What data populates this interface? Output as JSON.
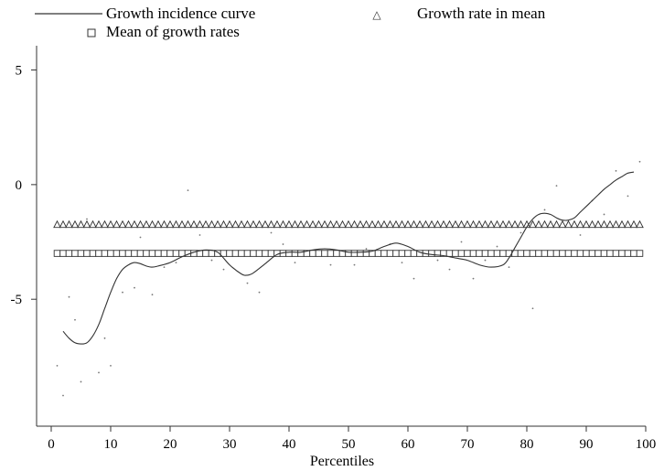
{
  "chart_data": {
    "type": "line",
    "title": "",
    "xlabel": "Percentiles",
    "ylabel": "",
    "xlim": [
      0,
      100
    ],
    "ylim": [
      -9.5,
      5.5
    ],
    "x_ticks": [
      0,
      10,
      20,
      30,
      40,
      50,
      60,
      70,
      80,
      90,
      100
    ],
    "x_tick_labels": [
      "0",
      "10",
      "20",
      "30",
      "40",
      "50",
      "60",
      "70",
      "80",
      "90",
      "100"
    ],
    "y_ticks": [
      5,
      0,
      -5
    ],
    "y_tick_labels": [
      "5",
      "0",
      "-5"
    ],
    "legend_position": "top",
    "series": [
      {
        "name": "Growth incidence curve",
        "style": "line",
        "color": "#333333",
        "x": [
          2,
          3,
          4,
          5,
          6,
          7,
          8,
          9,
          10,
          11,
          12,
          13,
          14,
          15,
          16,
          17,
          18,
          20,
          22,
          24,
          26,
          28,
          30,
          32,
          33,
          34,
          36,
          38,
          40,
          42,
          44,
          46,
          48,
          50,
          52,
          54,
          56,
          58,
          60,
          62,
          64,
          66,
          68,
          70,
          72,
          74,
          76,
          77,
          78,
          79,
          80,
          81,
          82,
          83,
          84,
          85,
          86,
          87,
          88,
          89,
          90,
          91,
          92,
          93,
          94,
          95,
          96,
          97,
          98
        ],
        "y": [
          -6.4,
          -6.7,
          -6.9,
          -6.95,
          -6.9,
          -6.6,
          -6.1,
          -5.4,
          -4.7,
          -4.1,
          -3.7,
          -3.5,
          -3.4,
          -3.45,
          -3.55,
          -3.6,
          -3.55,
          -3.4,
          -3.15,
          -2.95,
          -2.85,
          -2.95,
          -3.5,
          -3.9,
          -3.95,
          -3.85,
          -3.45,
          -3.05,
          -2.95,
          -2.95,
          -2.85,
          -2.8,
          -2.85,
          -2.95,
          -2.95,
          -2.9,
          -2.7,
          -2.55,
          -2.7,
          -2.95,
          -3.05,
          -3.1,
          -3.2,
          -3.3,
          -3.5,
          -3.6,
          -3.5,
          -3.2,
          -2.75,
          -2.3,
          -1.85,
          -1.5,
          -1.3,
          -1.25,
          -1.3,
          -1.45,
          -1.55,
          -1.55,
          -1.45,
          -1.2,
          -0.95,
          -0.7,
          -0.45,
          -0.2,
          0.0,
          0.2,
          0.35,
          0.5,
          0.55
        ]
      },
      {
        "name": "Growth rate in mean",
        "style": "triangle-markers",
        "color": "#333333",
        "x_from": 1,
        "x_to": 99,
        "value": -1.75
      },
      {
        "name": "Mean of growth rates",
        "style": "square-markers",
        "color": "#333333",
        "x_from": 1,
        "x_to": 99,
        "value": -3.0
      },
      {
        "name": "",
        "style": "scatter-dots",
        "color": "#777777",
        "x": [
          1,
          2,
          3,
          4,
          5,
          6,
          8,
          9,
          10,
          12,
          14,
          15,
          17,
          19,
          21,
          23,
          25,
          27,
          29,
          31,
          33,
          35,
          37,
          39,
          41,
          43,
          45,
          47,
          49,
          51,
          53,
          55,
          57,
          59,
          61,
          63,
          65,
          67,
          69,
          71,
          73,
          75,
          77,
          79,
          81,
          83,
          85,
          87,
          89,
          91,
          93,
          95,
          97,
          99
        ],
        "y": [
          -7.9,
          -9.2,
          -4.9,
          -5.9,
          -8.6,
          -1.5,
          -8.2,
          -6.7,
          -7.9,
          -4.7,
          -4.5,
          -2.3,
          -4.8,
          -3.6,
          -3.4,
          -0.25,
          -2.2,
          -3.3,
          -3.7,
          -3.0,
          -4.3,
          -4.7,
          -2.1,
          -2.6,
          -3.4,
          -3.1,
          -2.9,
          -3.5,
          -3.0,
          -3.5,
          -2.8,
          -3.1,
          -2.6,
          -3.4,
          -4.1,
          -2.9,
          -3.3,
          -3.7,
          -2.5,
          -4.1,
          -3.3,
          -2.7,
          -3.6,
          -2.1,
          -5.4,
          -1.1,
          -0.05,
          -1.8,
          -2.2,
          -0.7,
          -1.3,
          0.6,
          -0.5,
          1.0
        ]
      }
    ]
  }
}
